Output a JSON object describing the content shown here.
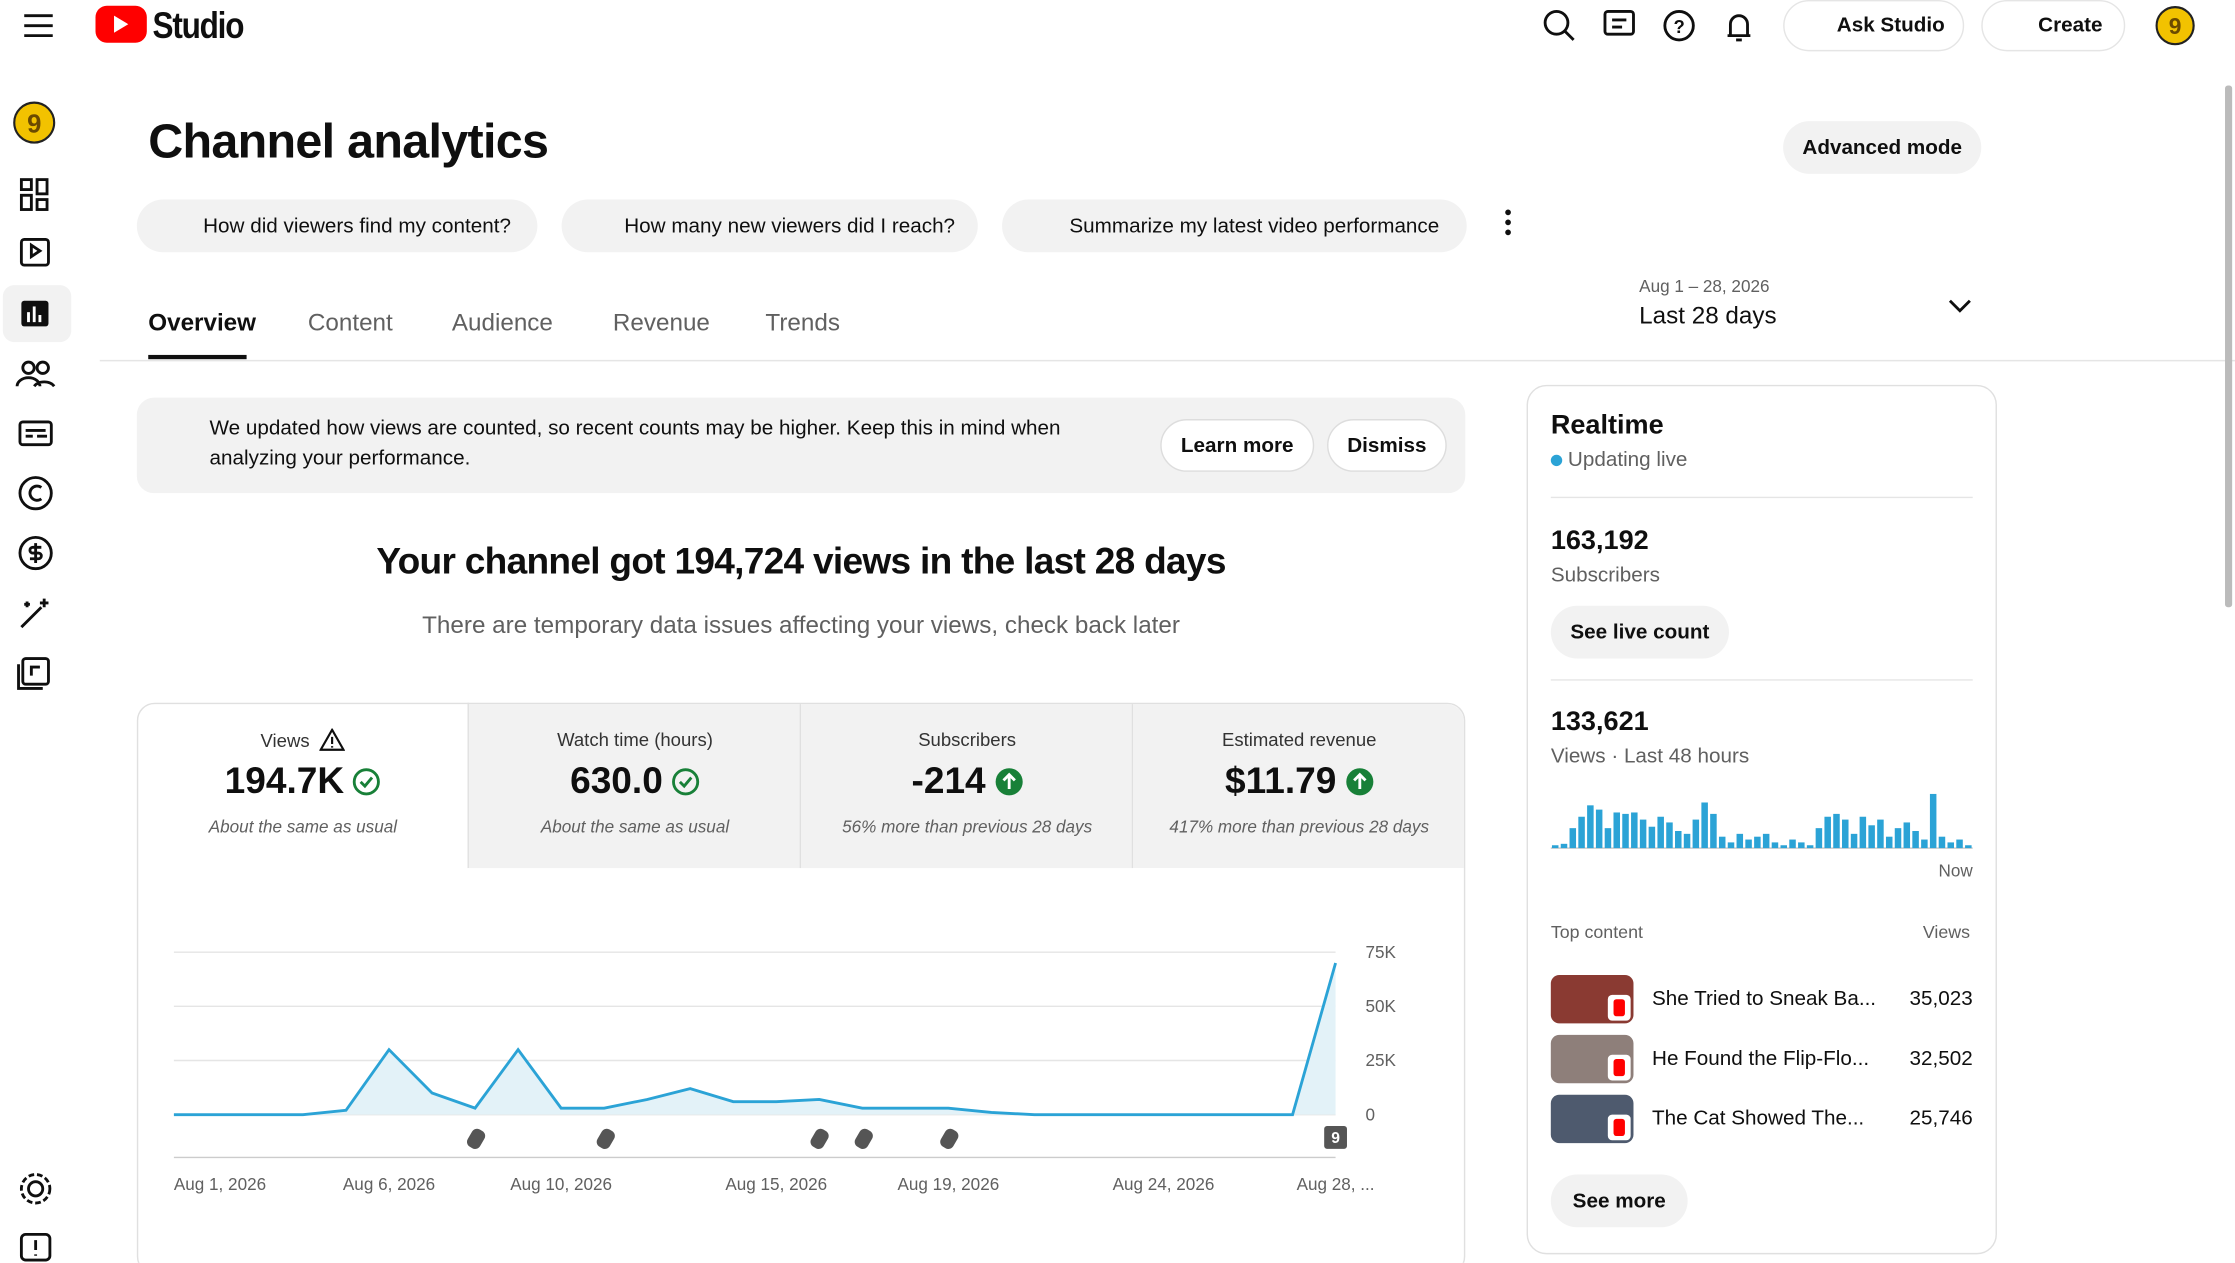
{
  "header": {
    "logo_text": "Studio",
    "ask": "Ask Studio",
    "create": "Create"
  },
  "page": {
    "title": "Channel analytics",
    "advanced": "Advanced mode"
  },
  "prompts": [
    "How did viewers find my content?",
    "How many new viewers did I reach?",
    "Summarize my latest video performance"
  ],
  "tabs": [
    "Overview",
    "Content",
    "Audience",
    "Revenue",
    "Trends"
  ],
  "date_range": {
    "range": "Aug 1 – 28, 2026",
    "label": "Last 28 days"
  },
  "notice": {
    "text": "We updated how views are counted, so recent counts may be higher. Keep this in mind when analyzing your performance.",
    "learn": "Learn more",
    "dismiss": "Dismiss"
  },
  "headline": "Your channel got 194,724 views in the last 28 days",
  "subline": "There are temporary data issues affecting your views, check back later",
  "metrics": [
    {
      "label": "Views",
      "value": "194.7K",
      "note": "About the same as usual"
    },
    {
      "label": "Watch time (hours)",
      "value": "630.0",
      "note": "About the same as usual"
    },
    {
      "label": "Subscribers",
      "value": "-214",
      "note": "56% more than previous 28 days"
    },
    {
      "label": "Estimated revenue",
      "value": "$11.79",
      "note": "417% more than previous 28 days"
    }
  ],
  "chart_data": [
    {
      "type": "line",
      "categories": [
        "Aug 1, 2026",
        null,
        null,
        null,
        null,
        "Aug 6, 2026",
        null,
        null,
        null,
        "Aug 10, 2026",
        null,
        null,
        null,
        null,
        "Aug 15, 2026",
        null,
        null,
        null,
        "Aug 19, 2026",
        null,
        null,
        null,
        null,
        "Aug 24, 2026",
        null,
        null,
        null,
        "Aug 28, ..."
      ],
      "values": [
        0,
        0,
        0,
        0,
        2000,
        30000,
        10000,
        3000,
        30000,
        3000,
        3000,
        7000,
        12000,
        6000,
        6000,
        7000,
        3000,
        3000,
        3000,
        1000,
        0,
        0,
        0,
        0,
        0,
        0,
        0,
        70000
      ],
      "color": "#2ba3d6",
      "ylim": [
        0,
        75000
      ],
      "yticks": [
        0,
        {
          "value": 25000,
          "label": "25K"
        },
        {
          "value": 50000,
          "label": "50K"
        },
        {
          "value": 75000,
          "label": "75K"
        }
      ],
      "grid": true,
      "annotations": [
        "9"
      ]
    },
    {
      "type": "bar",
      "values": [
        2,
        3,
        14,
        22,
        30,
        27,
        14,
        25,
        24,
        25,
        20,
        15,
        22,
        18,
        12,
        10,
        20,
        32,
        24,
        8,
        4,
        10,
        6,
        8,
        10,
        4,
        2,
        6,
        4,
        2,
        14,
        22,
        24,
        20,
        10,
        22,
        16,
        20,
        8,
        14,
        18,
        12,
        6,
        38,
        8,
        4,
        6,
        2
      ],
      "color": "#2ba3d6",
      "ylim": [
        0,
        40
      ],
      "annotations": [
        "Now"
      ]
    }
  ],
  "realtime": {
    "title": "Realtime",
    "status": "Updating live",
    "subscribers": "163,192",
    "subscribers_label": "Subscribers",
    "live_button": "See live count",
    "views": "133,621",
    "views_label": "Views · Last 48 hours",
    "top_label": "Top content",
    "top_views_label": "Views",
    "top": [
      {
        "title": "She Tried to Sneak Ba...",
        "views": "35,023"
      },
      {
        "title": "He Found the Flip-Flo...",
        "views": "32,502"
      },
      {
        "title": "The Cat Showed The...",
        "views": "25,746"
      }
    ],
    "more": "See more"
  }
}
